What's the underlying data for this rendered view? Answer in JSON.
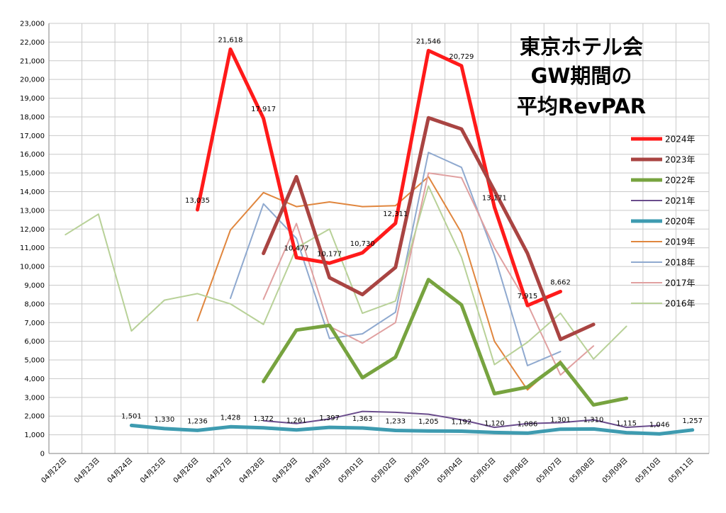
{
  "chart_data": {
    "type": "line",
    "title": [
      "東京ホテル会",
      "GW期間の",
      "平均RevPAR"
    ],
    "ylim": [
      0,
      23000
    ],
    "ystep": 1000,
    "grid": true,
    "legend_position": "right",
    "categories": [
      "04月22日",
      "04月23日",
      "04月24日",
      "04月25日",
      "04月26日",
      "04月27日",
      "04月28日",
      "04月29日",
      "04月30日",
      "05月01日",
      "05月02日",
      "05月03日",
      "05月04日",
      "05月05日",
      "05月06日",
      "05月07日",
      "05月08日",
      "05月09日",
      "05月10日",
      "05月11日"
    ],
    "series": [
      {
        "name": "2024年",
        "color": "#ff1a1a",
        "width": 5,
        "values": [
          null,
          null,
          null,
          null,
          13035,
          21618,
          17917,
          10477,
          10177,
          10730,
          12311,
          21546,
          20729,
          13171,
          7915,
          8662,
          null,
          null,
          null,
          null
        ]
      },
      {
        "name": "2023年",
        "color": "#a94442",
        "width": 5,
        "values": [
          null,
          null,
          null,
          null,
          null,
          null,
          10700,
          14800,
          9400,
          8500,
          9950,
          17950,
          17350,
          14050,
          10700,
          6100,
          6900,
          null,
          null,
          null
        ]
      },
      {
        "name": "2022年",
        "color": "#77a33f",
        "width": 5,
        "values": [
          null,
          null,
          null,
          null,
          null,
          null,
          3850,
          6600,
          6850,
          4050,
          5150,
          9300,
          7950,
          3200,
          3550,
          4850,
          2600,
          2950,
          null,
          null
        ]
      },
      {
        "name": "2021年",
        "color": "#6a4c8c",
        "width": 2,
        "values": [
          null,
          null,
          null,
          null,
          null,
          null,
          1750,
          1600,
          1850,
          2250,
          2200,
          2100,
          1800,
          1400,
          1600,
          1650,
          1800,
          1400,
          1500,
          null
        ]
      },
      {
        "name": "2020年",
        "color": "#3e9bb0",
        "width": 5,
        "values": [
          null,
          null,
          1501,
          1330,
          1236,
          1428,
          1372,
          1261,
          1397,
          1363,
          1233,
          1205,
          1192,
          1120,
          1086,
          1301,
          1310,
          1115,
          1046,
          1257
        ]
      },
      {
        "name": "2019年",
        "color": "#e0863e",
        "width": 2,
        "values": [
          null,
          null,
          null,
          null,
          7100,
          11950,
          13950,
          13200,
          13450,
          13200,
          13250,
          14800,
          11800,
          6000,
          3400,
          4950,
          null,
          null,
          null,
          null
        ]
      },
      {
        "name": "2018年",
        "color": "#8fa9cf",
        "width": 2,
        "values": [
          null,
          null,
          null,
          null,
          null,
          8300,
          13350,
          11500,
          6150,
          6400,
          7550,
          16100,
          15300,
          10600,
          4700,
          5450,
          null,
          null,
          null,
          null
        ]
      },
      {
        "name": "2017年",
        "color": "#e0a0a0",
        "width": 2,
        "values": [
          null,
          null,
          null,
          null,
          null,
          null,
          8250,
          12300,
          6800,
          5900,
          7000,
          15000,
          14750,
          11000,
          8000,
          4200,
          5750,
          null,
          null,
          null
        ]
      },
      {
        "name": "2016年",
        "color": "#b8d198",
        "width": 2,
        "values": [
          11700,
          12800,
          6550,
          8200,
          8550,
          8000,
          6900,
          11000,
          12000,
          7500,
          8150,
          14300,
          10500,
          4750,
          5950,
          7500,
          5050,
          6800,
          null,
          null
        ]
      }
    ],
    "data_labels": [
      {
        "series": "2024年",
        "index": 4,
        "text": "13,035"
      },
      {
        "series": "2024年",
        "index": 5,
        "text": "21,618"
      },
      {
        "series": "2024年",
        "index": 6,
        "text": "17,917"
      },
      {
        "series": "2024年",
        "index": 7,
        "text": "10,477"
      },
      {
        "series": "2024年",
        "index": 8,
        "text": "10,177"
      },
      {
        "series": "2024年",
        "index": 9,
        "text": "10,730"
      },
      {
        "series": "2024年",
        "index": 10,
        "text": "12,311"
      },
      {
        "series": "2024年",
        "index": 11,
        "text": "21,546"
      },
      {
        "series": "2024年",
        "index": 12,
        "text": "20,729"
      },
      {
        "series": "2024年",
        "index": 13,
        "text": "13,171"
      },
      {
        "series": "2024年",
        "index": 14,
        "text": "7,915"
      },
      {
        "series": "2024年",
        "index": 15,
        "text": "8,662"
      },
      {
        "series": "2020年",
        "index": 2,
        "text": "1,501"
      },
      {
        "series": "2020年",
        "index": 3,
        "text": "1,330"
      },
      {
        "series": "2020年",
        "index": 4,
        "text": "1,236"
      },
      {
        "series": "2020年",
        "index": 5,
        "text": "1,428"
      },
      {
        "series": "2020年",
        "index": 6,
        "text": "1,372"
      },
      {
        "series": "2020年",
        "index": 7,
        "text": "1,261"
      },
      {
        "series": "2020年",
        "index": 8,
        "text": "1,397"
      },
      {
        "series": "2020年",
        "index": 9,
        "text": "1,363"
      },
      {
        "series": "2020年",
        "index": 10,
        "text": "1,233"
      },
      {
        "series": "2020年",
        "index": 11,
        "text": "1,205"
      },
      {
        "series": "2020年",
        "index": 12,
        "text": "1,192"
      },
      {
        "series": "2020年",
        "index": 13,
        "text": "1,120"
      },
      {
        "series": "2020年",
        "index": 14,
        "text": "1,086"
      },
      {
        "series": "2020年",
        "index": 15,
        "text": "1,301"
      },
      {
        "series": "2020年",
        "index": 16,
        "text": "1,310"
      },
      {
        "series": "2020年",
        "index": 17,
        "text": "1,115"
      },
      {
        "series": "2020年",
        "index": 18,
        "text": "1,046"
      },
      {
        "series": "2020年",
        "index": 19,
        "text": "1,257"
      }
    ]
  }
}
